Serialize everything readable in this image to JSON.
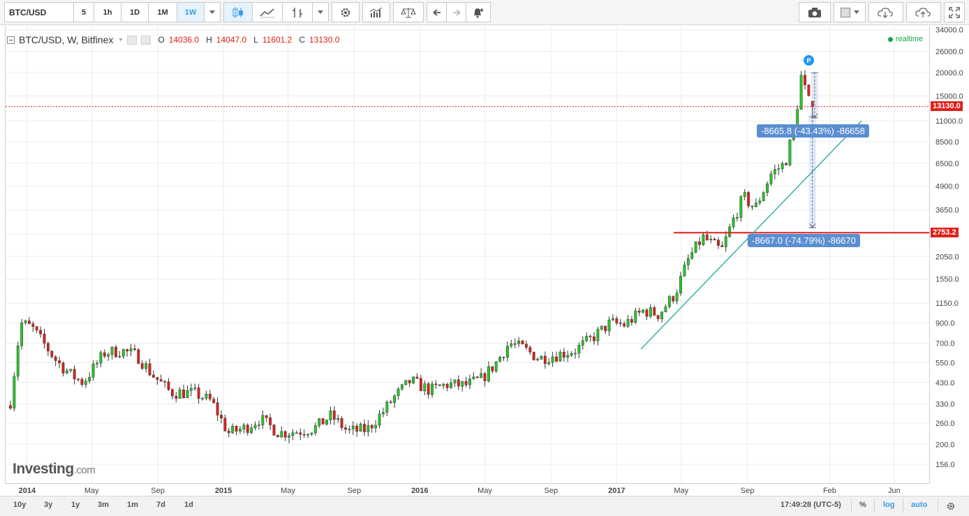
{
  "toolbar": {
    "symbol": "BTC/USD",
    "intervals": [
      "5",
      "1h",
      "1D",
      "1M",
      "1W"
    ],
    "active_interval": "1W"
  },
  "legend": {
    "title": "BTC/USD, W, Bitfinex",
    "o_label": "O",
    "o_value": "14036.0",
    "h_label": "H",
    "h_value": "14047.0",
    "l_label": "L",
    "l_value": "11601.2",
    "c_label": "C",
    "c_value": "13130.0"
  },
  "realtime_label": "realtime",
  "logo": {
    "brand": "Investing",
    "domain": ".com"
  },
  "price_labels": {
    "last": "13130.0",
    "horizontal": "2753.2"
  },
  "measurements": {
    "upper": "-8665.8 (-43.43%) -86658",
    "lower": "-8667.0 (-74.79%) -86670"
  },
  "marker": "P",
  "bottom": {
    "ranges": [
      "10y",
      "3y",
      "1y",
      "3m",
      "1m",
      "7d",
      "1d"
    ],
    "time": "17:49:28 (UTC-5)",
    "percent": "%",
    "log": "log",
    "auto": "auto"
  },
  "colors": {
    "up": "#26c826",
    "down": "#e0201b",
    "accent": "#3a9be6",
    "trendline": "#1aa59a",
    "measure": "#5b8ed1"
  },
  "chart_data": {
    "type": "candlestick",
    "scale": "log",
    "symbol": "BTC/USD",
    "interval": "W",
    "exchange": "Bitfinex",
    "y_ticks": [
      156,
      200,
      260,
      330,
      430,
      550,
      700,
      900,
      1150,
      1550,
      2050,
      2700,
      3650,
      4900,
      6500,
      8500,
      11000,
      15000,
      20000,
      26000,
      34000
    ],
    "y_tick_labels": [
      "156.0",
      "200.0",
      "260.0",
      "330.0",
      "430.0",
      "550.0",
      "700.0",
      "900.0",
      "1150.0",
      "1550.0",
      "2050.0",
      "2700.0",
      "3650.0",
      "4900.0",
      "6500.0",
      "8500.0",
      "11000.0",
      "15000.0",
      "20000.0",
      "26000.0",
      "34000.0"
    ],
    "ylim": [
      130,
      34000
    ],
    "x_ticks": [
      {
        "label": "2014",
        "date": "2014-01-01",
        "bold": true
      },
      {
        "label": "May",
        "date": "2014-05-01"
      },
      {
        "label": "Sep",
        "date": "2014-09-01"
      },
      {
        "label": "2015",
        "date": "2015-01-01",
        "bold": true
      },
      {
        "label": "May",
        "date": "2015-05-01"
      },
      {
        "label": "Sep",
        "date": "2015-09-01"
      },
      {
        "label": "2016",
        "date": "2016-01-01",
        "bold": true
      },
      {
        "label": "May",
        "date": "2016-05-01"
      },
      {
        "label": "Sep",
        "date": "2016-09-01"
      },
      {
        "label": "2017",
        "date": "2017-01-01",
        "bold": true
      },
      {
        "label": "May",
        "date": "2017-05-01"
      },
      {
        "label": "Sep",
        "date": "2017-09-01"
      },
      {
        "label": "Feb",
        "date": "2018-02-01"
      },
      {
        "label": "Jun",
        "date": "2018-06-01"
      }
    ],
    "xlim": [
      "2013-11-22",
      "2018-08-05"
    ],
    "anchors": [
      {
        "date": "2013-12-01",
        "close": 340
      },
      {
        "date": "2013-12-20",
        "close": 900
      },
      {
        "date": "2014-01-10",
        "close": 850
      },
      {
        "date": "2014-02-25",
        "close": 560
      },
      {
        "date": "2014-03-25",
        "close": 470
      },
      {
        "date": "2014-04-15",
        "close": 430
      },
      {
        "date": "2014-05-25",
        "close": 620
      },
      {
        "date": "2014-06-25",
        "close": 640
      },
      {
        "date": "2014-07-25",
        "close": 600
      },
      {
        "date": "2014-08-20",
        "close": 480
      },
      {
        "date": "2014-09-25",
        "close": 380
      },
      {
        "date": "2014-10-15",
        "close": 380
      },
      {
        "date": "2014-11-10",
        "close": 375
      },
      {
        "date": "2014-12-10",
        "close": 340
      },
      {
        "date": "2015-01-10",
        "close": 230
      },
      {
        "date": "2015-02-10",
        "close": 245
      },
      {
        "date": "2015-03-10",
        "close": 275
      },
      {
        "date": "2015-04-15",
        "close": 230
      },
      {
        "date": "2015-05-20",
        "close": 235
      },
      {
        "date": "2015-06-20",
        "close": 245
      },
      {
        "date": "2015-07-20",
        "close": 285
      },
      {
        "date": "2015-08-20",
        "close": 235
      },
      {
        "date": "2015-09-25",
        "close": 240
      },
      {
        "date": "2015-10-25",
        "close": 300
      },
      {
        "date": "2015-11-15",
        "close": 360
      },
      {
        "date": "2015-12-15",
        "close": 440
      },
      {
        "date": "2016-01-20",
        "close": 390
      },
      {
        "date": "2016-02-20",
        "close": 420
      },
      {
        "date": "2016-03-25",
        "close": 415
      },
      {
        "date": "2016-04-25",
        "close": 450
      },
      {
        "date": "2016-05-20",
        "close": 540
      },
      {
        "date": "2016-06-15",
        "close": 700
      },
      {
        "date": "2016-07-10",
        "close": 660
      },
      {
        "date": "2016-08-10",
        "close": 580
      },
      {
        "date": "2016-09-15",
        "close": 610
      },
      {
        "date": "2016-10-15",
        "close": 640
      },
      {
        "date": "2016-11-15",
        "close": 740
      },
      {
        "date": "2016-12-20",
        "close": 900
      },
      {
        "date": "2017-01-15",
        "close": 880
      },
      {
        "date": "2017-02-20",
        "close": 1050
      },
      {
        "date": "2017-03-20",
        "close": 1000
      },
      {
        "date": "2017-04-20",
        "close": 1300
      },
      {
        "date": "2017-05-15",
        "close": 2000
      },
      {
        "date": "2017-06-10",
        "close": 2600
      },
      {
        "date": "2017-07-15",
        "close": 2200
      },
      {
        "date": "2017-08-05",
        "close": 3200
      },
      {
        "date": "2017-08-25",
        "close": 4300
      },
      {
        "date": "2017-09-15",
        "close": 3700
      },
      {
        "date": "2017-10-15",
        "close": 5700
      },
      {
        "date": "2017-11-10",
        "close": 6500
      },
      {
        "date": "2017-11-28",
        "close": 10500
      },
      {
        "date": "2017-12-10",
        "close": 19000
      },
      {
        "date": "2017-12-24",
        "close": 14036
      }
    ],
    "last_candle": {
      "date": "2017-12-31",
      "open": 14036.0,
      "high": 14047.0,
      "low": 11601.2,
      "close": 13130.0
    },
    "last_price": 13130.0,
    "horizontal_line": 2753.2,
    "trendline": {
      "from": {
        "date": "2017-02-15",
        "price": 650
      },
      "to": {
        "date": "2018-04-01",
        "price": 11000
      }
    },
    "measure_upper": {
      "date": "2018-01-04",
      "from": 20000,
      "to": 11420
    },
    "measure_lower": {
      "date": "2017-12-31",
      "from": 11600,
      "to": 2925
    }
  }
}
